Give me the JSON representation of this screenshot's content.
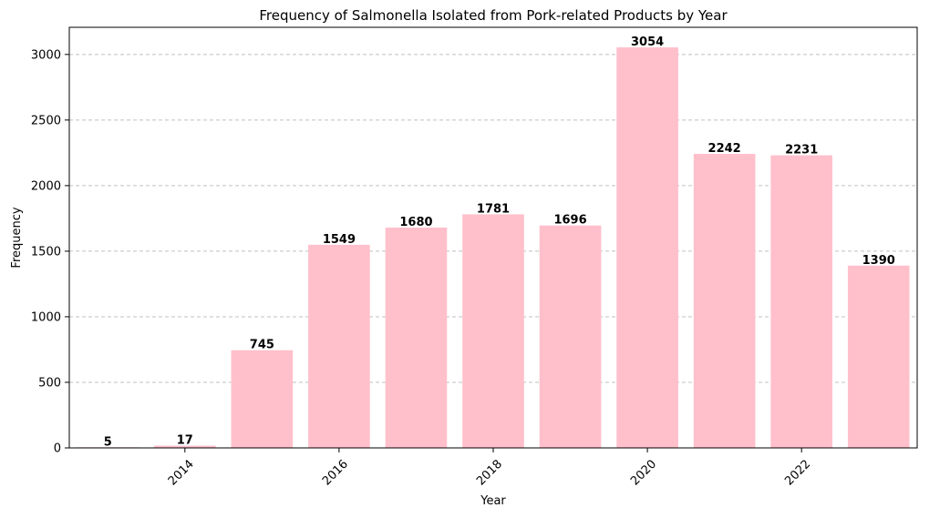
{
  "chart_data": {
    "type": "bar",
    "title": "Frequency of Salmonella Isolated from Pork-related Products by Year",
    "xlabel": "Year",
    "ylabel": "Frequency",
    "x": [
      2013,
      2014,
      2015,
      2016,
      2017,
      2018,
      2019,
      2020,
      2021,
      2022,
      2023
    ],
    "values": [
      5,
      17,
      745,
      1549,
      1680,
      1781,
      1696,
      3054,
      2242,
      2231,
      1390
    ],
    "data_labels": [
      "5",
      "17",
      "745",
      "1549",
      "1680",
      "1781",
      "1696",
      "3054",
      "2242",
      "2231",
      "1390"
    ],
    "xticks": [
      2014,
      2016,
      2018,
      2020,
      2022
    ],
    "xtick_labels": [
      "2014",
      "2016",
      "2018",
      "2020",
      "2022"
    ],
    "xlim": [
      2012.5,
      2023.5
    ],
    "yticks": [
      0,
      500,
      1000,
      1500,
      2000,
      2500,
      3000
    ],
    "ytick_labels": [
      "0",
      "500",
      "1000",
      "1500",
      "2000",
      "2500",
      "3000"
    ],
    "ylim": [
      0,
      3207
    ],
    "grid": "y-dashed",
    "bar_color": "#ffc0cb",
    "grid_color": "#c0c0c0"
  }
}
